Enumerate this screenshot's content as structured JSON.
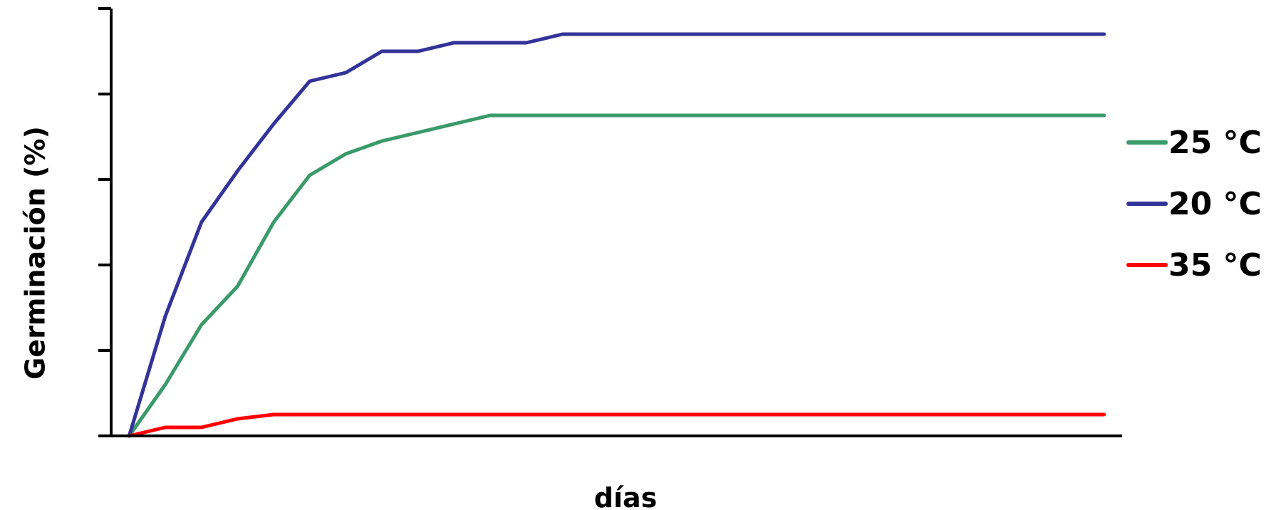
{
  "chart_data": {
    "type": "line",
    "title": "",
    "xlabel": "días",
    "ylabel": "Germinación (%)",
    "x": [
      0,
      1,
      2,
      3,
      4,
      5,
      6,
      7,
      8,
      9,
      10,
      11,
      12,
      27
    ],
    "xlim": [
      -0.5,
      27.5
    ],
    "ylim": [
      0,
      100
    ],
    "yticks": [
      0,
      20,
      40,
      60,
      80,
      100
    ],
    "grid": false,
    "legend_position": "right",
    "series": [
      {
        "name": "25 °C",
        "color": "#3a9a6a",
        "values": [
          0,
          12,
          26,
          35,
          50,
          61,
          66,
          69,
          71,
          73,
          75,
          75,
          75,
          75
        ]
      },
      {
        "name": "20 °C",
        "color": "#333399",
        "values": [
          0,
          28,
          50,
          62,
          73,
          83,
          85,
          90,
          90,
          92,
          92,
          92,
          94,
          94
        ]
      },
      {
        "name": "35 °C",
        "color": "#ff0000",
        "values": [
          0,
          2,
          2,
          4,
          5,
          5,
          5,
          5,
          5,
          5,
          5,
          5,
          5,
          5
        ]
      }
    ]
  }
}
